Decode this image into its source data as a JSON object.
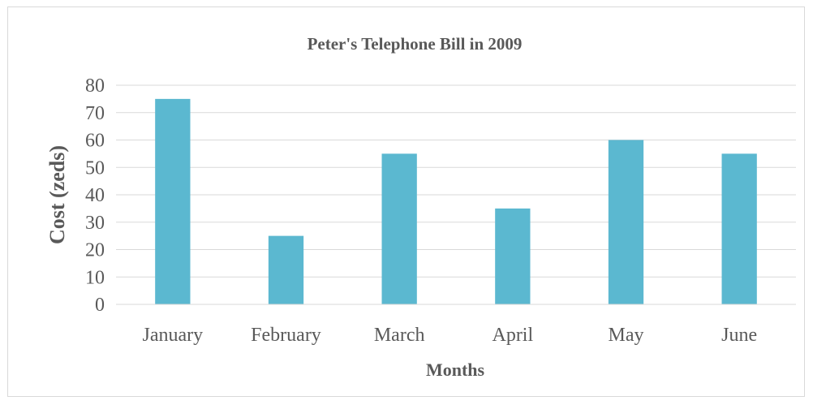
{
  "chart_data": {
    "type": "bar",
    "title": "Peter's Telephone Bill in 2009",
    "xlabel": "Months",
    "ylabel": "Cost (zeds)",
    "categories": [
      "January",
      "February",
      "March",
      "April",
      "May",
      "June"
    ],
    "values": [
      75,
      25,
      55,
      35,
      60,
      55
    ],
    "ylim": [
      0,
      80
    ],
    "yticks": [
      "0",
      "10",
      "20",
      "30",
      "40",
      "50",
      "60",
      "70",
      "80"
    ],
    "grid": true,
    "legend": "none",
    "bar_color": "#5bb8d0",
    "grid_color": "#d9d9d9",
    "text_color": "#595959"
  }
}
